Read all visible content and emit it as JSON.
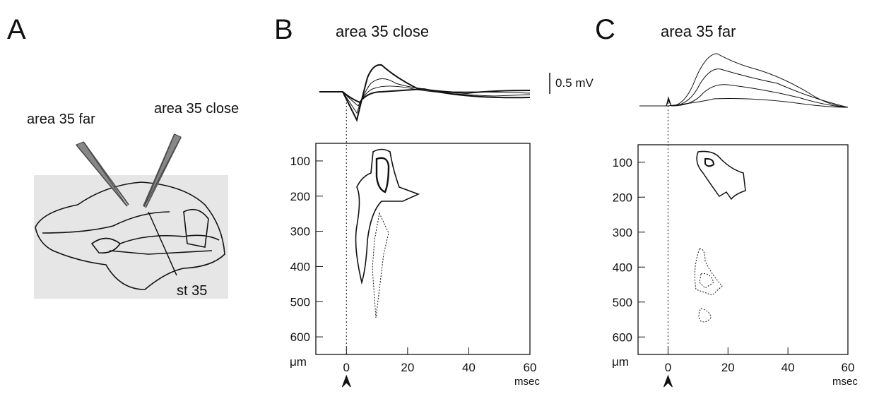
{
  "panel_a": {
    "label": "A",
    "electrode_far": "area 35 far",
    "electrode_close": "area 35 close",
    "site": "st 35"
  },
  "panel_b": {
    "label": "B",
    "title": "area 35 close",
    "scale_bar": "0.5 mV",
    "x_unit": "msec",
    "y_unit": "μm",
    "xlim": [
      -10,
      60
    ],
    "xticks": [
      0,
      20,
      40,
      60
    ],
    "ylim": [
      650,
      50
    ],
    "yticks": [
      100,
      200,
      300,
      400,
      500,
      600
    ]
  },
  "panel_c": {
    "label": "C",
    "title": "area 35 far",
    "x_unit": "msec",
    "y_unit": "μm",
    "xlim": [
      -10,
      60
    ],
    "xticks": [
      0,
      20,
      40,
      60
    ],
    "ylim": [
      650,
      50
    ],
    "yticks": [
      100,
      200,
      300,
      400,
      500,
      600
    ]
  }
}
